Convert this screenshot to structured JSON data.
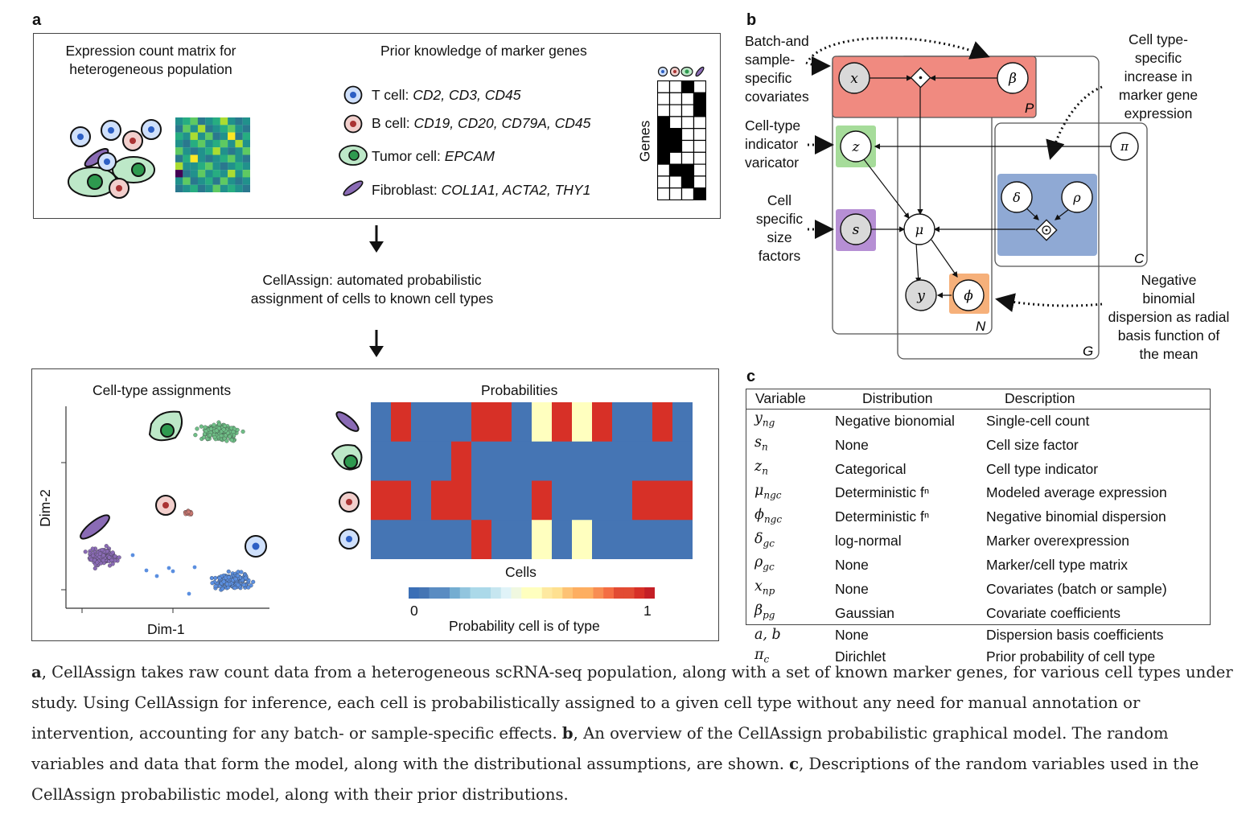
{
  "panels": {
    "a": "a",
    "b": "b",
    "c": "c"
  },
  "panel_a": {
    "top_left_title": [
      "Expression count matrix for",
      "heterogeneous population"
    ],
    "top_right_title": "Prior knowledge of marker genes",
    "markers": [
      {
        "type": "T cell:",
        "genes": "CD2, CD3, CD45"
      },
      {
        "type": "B cell:",
        "genes": "CD19, CD20, CD79A, CD45"
      },
      {
        "type": "Tumor cell:",
        "genes": "EPCAM"
      },
      {
        "type": "Fibroblast:",
        "genes": "COL1A1, ACTA2, THY1"
      }
    ],
    "genes_axis": "Genes",
    "marker_matrix": [
      [
        0,
        0,
        1,
        0
      ],
      [
        0,
        0,
        0,
        1
      ],
      [
        0,
        0,
        0,
        1
      ],
      [
        1,
        0,
        0,
        0
      ],
      [
        1,
        1,
        0,
        0
      ],
      [
        1,
        1,
        0,
        0
      ],
      [
        1,
        0,
        0,
        0
      ],
      [
        0,
        1,
        1,
        0
      ],
      [
        0,
        0,
        1,
        0
      ],
      [
        0,
        0,
        0,
        1
      ]
    ],
    "middle_text": [
      "CellAssign: automated probabilistic",
      "assignment of cells to known cell types"
    ],
    "assign_title": "Cell-type assignments",
    "assign_xlabel": "Dim-1",
    "assign_ylabel": "Dim-2",
    "prob_title": "Probabilities",
    "prob_xlabel": "Cells",
    "colorbar_min": "0",
    "colorbar_max": "1",
    "colorbar_label": "Probability cell is of type",
    "heat_colors": {
      "blue": "#4575b4",
      "red": "#d73027",
      "yellow": "#ffffbf"
    },
    "heat_rows": [
      [
        "B",
        "R",
        "B",
        "B",
        "B",
        "R",
        "R",
        "B",
        "Y",
        "R",
        "Y",
        "R",
        "B",
        "B",
        "R",
        "B"
      ],
      [
        "B",
        "B",
        "B",
        "B",
        "R",
        "B",
        "B",
        "B",
        "B",
        "B",
        "B",
        "B",
        "B",
        "B",
        "B",
        "B"
      ],
      [
        "R",
        "R",
        "B",
        "R",
        "R",
        "B",
        "B",
        "B",
        "R",
        "B",
        "B",
        "B",
        "B",
        "R",
        "R",
        "R"
      ],
      [
        "B",
        "B",
        "B",
        "B",
        "B",
        "R",
        "B",
        "B",
        "Y",
        "B",
        "Y",
        "B",
        "B",
        "B",
        "B",
        "B"
      ]
    ],
    "cell_colors": {
      "t_cell": "#5b8fe0",
      "b_cell": "#c97872",
      "tumor": "#6fbf87",
      "fibro": "#8a6bb5"
    }
  },
  "panel_b": {
    "left_labels": [
      [
        "Batch-and",
        "sample-",
        "specific",
        "covariates"
      ],
      [
        "Cell-type",
        "indicator",
        "varicator"
      ],
      [
        "Cell",
        "specific",
        "size",
        "factors"
      ]
    ],
    "right_labels": [
      [
        "Cell type-",
        "specific",
        "increase in",
        "marker gene",
        "expression"
      ],
      [
        "Negative",
        "binomial",
        "dispersion as radial",
        "basis function of",
        "the mean"
      ]
    ],
    "nodes": {
      "x": "x",
      "beta": "β",
      "z": "z",
      "s": "s",
      "mu": "μ",
      "pi": "π",
      "delta": "δ",
      "rho": "ρ",
      "y": "y",
      "phi": "ϕ"
    },
    "plates": {
      "P": "P",
      "C": "C",
      "N": "N",
      "G": "G"
    },
    "colors": {
      "covariate_plate": "#f08a80",
      "indicator": "#a6dc9a",
      "size": "#b68fd4",
      "marker": "#8fa9d4",
      "dispersion": "#f6b07a"
    }
  },
  "panel_c": {
    "headers": [
      "Variable",
      "Distribution",
      "Description"
    ],
    "rows": [
      {
        "var": "y",
        "sub": "ng",
        "dist": "Negative bionomial",
        "desc": "Single-cell count"
      },
      {
        "var": "s",
        "sub": "n",
        "dist": "None",
        "desc": "Cell size factor"
      },
      {
        "var": "z",
        "sub": "n",
        "dist": "Categorical",
        "desc": "Cell type indicator"
      },
      {
        "var": "μ",
        "sub": "ngc",
        "dist": "Deterministic fⁿ",
        "desc": "Modeled average expression"
      },
      {
        "var": "ϕ",
        "sub": "ngc",
        "dist": "Deterministic fⁿ",
        "desc": "Negative binomial dispersion"
      },
      {
        "var": "δ",
        "sub": "gc",
        "dist": "log-normal",
        "desc": "Marker overexpression"
      },
      {
        "var": "ρ",
        "sub": "gc",
        "dist": "None",
        "desc": "Marker/cell type matrix"
      },
      {
        "var": "x",
        "sub": "np",
        "dist": "None",
        "desc": "Covariates (batch or sample)"
      },
      {
        "var": "β",
        "sub": "pg",
        "dist": "Gaussian",
        "desc": "Covariate coefficients"
      },
      {
        "var": "a, b",
        "sub": "",
        "dist": "None",
        "desc": "Dispersion basis coefficients"
      },
      {
        "var": "π",
        "sub": "c",
        "dist": "Dirichlet",
        "desc": "Prior probability of cell type"
      }
    ]
  },
  "caption": {
    "a_label": "a",
    "a_text": ", CellAssign takes raw count data from a heterogeneous scRNA-seq population, along with a set of known marker genes, for various cell types under study. Using CellAssign for inference, each cell is probabilistically assigned to a given cell type without any need for manual annotation or intervention, accounting for any batch- or sample-specific effects. ",
    "b_label": "b",
    "b_text": ", An overview of the CellAssign probabilistic graphical model. The random variables and data that form the model, along with the distributional assumptions, are shown. ",
    "c_label": "c",
    "c_text": ", Descriptions of the random variables used in the CellAssign probabilistic model, along with their prior distributions."
  }
}
